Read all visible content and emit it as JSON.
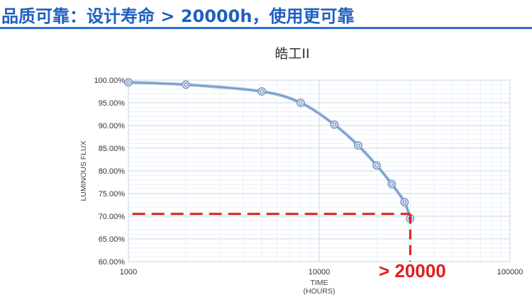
{
  "header": {
    "title": "品质可靠：设计寿命 > 20000h，使用更可靠",
    "accent_color": "#1f5fbf"
  },
  "chart_data": {
    "type": "line",
    "title": "皓工II",
    "xlabel": [
      "TIME",
      "(HOURS)"
    ],
    "ylabel": "LUMINOUS FLUX",
    "x_scale": "log",
    "xlim": [
      1000,
      100000
    ],
    "ylim": [
      60,
      100
    ],
    "grid": true,
    "x_tick_labels": [
      "1000",
      "10000",
      "100000"
    ],
    "y_tick_labels": [
      "100.00%",
      "95.00%",
      "90.00%",
      "85.00%",
      "80.00%",
      "75.00%",
      "70.00%",
      "65.00%",
      "60.00%"
    ],
    "series": [
      {
        "x": [
          1000,
          2000,
          5000,
          8000,
          12000,
          16000,
          20000,
          24000,
          28000,
          30000
        ],
        "y": [
          99.5,
          99.0,
          97.5,
          95.0,
          90.2,
          85.6,
          81.2,
          77.1,
          73.1,
          69.5
        ],
        "color": "#6f93c4"
      }
    ],
    "annotations": [
      {
        "type": "reference_line",
        "y": 70.5,
        "x_from": 1050,
        "x_to": 30000,
        "color": "#d42020"
      },
      {
        "type": "reference_line",
        "x": 30000,
        "y_from": 70.5,
        "y_to": 60,
        "color": "#d42020"
      },
      {
        "type": "text",
        "text": "> 20000",
        "color": "#e01e1e"
      }
    ]
  }
}
